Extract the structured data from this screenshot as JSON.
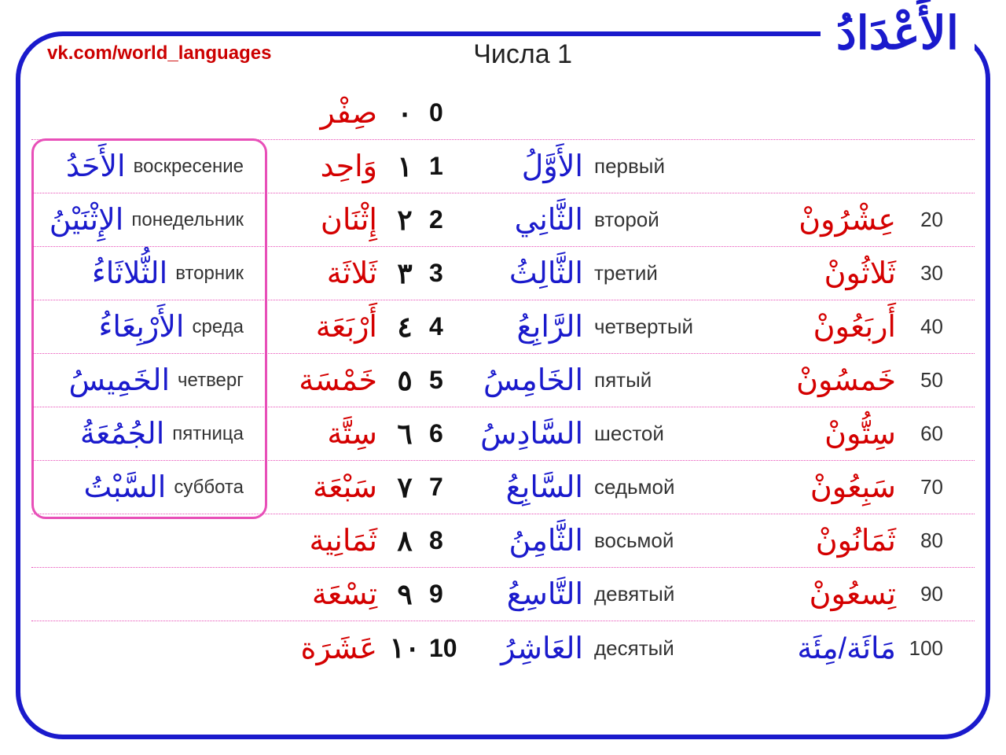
{
  "header": {
    "arabic_title": "الأَعْدَادُ",
    "vk_link": "vk.com/world_languages",
    "russian_title": "Числа 1"
  },
  "colors": {
    "frame": "#1a1acc",
    "red": "#d40000",
    "blue": "#1a1acc",
    "pink": "#e84fb8",
    "text": "#222222",
    "background": "#ffffff"
  },
  "rows": [
    {
      "day_ar": "",
      "day_ru": "",
      "cardinal_ar": "صِفْر",
      "digit_ar": "٠",
      "digit_en": "0",
      "ordinal_ar": "",
      "ordinal_ru": "",
      "tens_ar": "",
      "tens_num": ""
    },
    {
      "day_ar": "الأَحَدُ",
      "day_ru": "воскресение",
      "cardinal_ar": "وَاحِد",
      "digit_ar": "١",
      "digit_en": "1",
      "ordinal_ar": "الأَوَّلُ",
      "ordinal_ru": "первый",
      "tens_ar": "",
      "tens_num": ""
    },
    {
      "day_ar": "الإِثْنَيْنُ",
      "day_ru": "понедельник",
      "cardinal_ar": "إِثْنَان",
      "digit_ar": "٢",
      "digit_en": "2",
      "ordinal_ar": "الثَّانِي",
      "ordinal_ru": "второй",
      "tens_ar": "عِشْرُونْ",
      "tens_num": "20"
    },
    {
      "day_ar": "الثُّلاثَاءُ",
      "day_ru": "вторник",
      "cardinal_ar": "ثَلاثَة",
      "digit_ar": "٣",
      "digit_en": "3",
      "ordinal_ar": "الثَّالِثُ",
      "ordinal_ru": "третий",
      "tens_ar": "ثَلاثُونْ",
      "tens_num": "30"
    },
    {
      "day_ar": "الأَرْبِعَاءُ",
      "day_ru": "среда",
      "cardinal_ar": "أَرْبَعَة",
      "digit_ar": "٤",
      "digit_en": "4",
      "ordinal_ar": "الرَّابِعُ",
      "ordinal_ru": "четвертый",
      "tens_ar": "أَربَعُونْ",
      "tens_num": "40"
    },
    {
      "day_ar": "الخَمِيسُ",
      "day_ru": "четверг",
      "cardinal_ar": "خَمْسَة",
      "digit_ar": "٥",
      "digit_en": "5",
      "ordinal_ar": "الخَامِسُ",
      "ordinal_ru": "пятый",
      "tens_ar": "خَمسُونْ",
      "tens_num": "50"
    },
    {
      "day_ar": "الجُمُعَةُ",
      "day_ru": "пятница",
      "cardinal_ar": "سِتَّة",
      "digit_ar": "٦",
      "digit_en": "6",
      "ordinal_ar": "السَّادِسُ",
      "ordinal_ru": "шестой",
      "tens_ar": "سِتُّونْ",
      "tens_num": "60"
    },
    {
      "day_ar": "السَّبْتُ",
      "day_ru": "суббота",
      "cardinal_ar": "سَبْعَة",
      "digit_ar": "٧",
      "digit_en": "7",
      "ordinal_ar": "السَّابِعُ",
      "ordinal_ru": "седьмой",
      "tens_ar": "سَبِعُونْ",
      "tens_num": "70"
    },
    {
      "day_ar": "",
      "day_ru": "",
      "cardinal_ar": "ثَمَانِية",
      "digit_ar": "٨",
      "digit_en": "8",
      "ordinal_ar": "الثَّامِنُ",
      "ordinal_ru": "восьмой",
      "tens_ar": "ثَمَانُونْ",
      "tens_num": "80"
    },
    {
      "day_ar": "",
      "day_ru": "",
      "cardinal_ar": "تِسْعَة",
      "digit_ar": "٩",
      "digit_en": "9",
      "ordinal_ar": "التَّاسِعُ",
      "ordinal_ru": "девятый",
      "tens_ar": "تِسعُونْ",
      "tens_num": "90"
    },
    {
      "day_ar": "",
      "day_ru": "",
      "cardinal_ar": "عَشَرَة",
      "digit_ar": "١٠",
      "digit_en": "10",
      "ordinal_ar": "العَاشِرُ",
      "ordinal_ru": "десятый",
      "tens_ar": "مَائَة/مِئَة",
      "tens_num": "100"
    }
  ]
}
